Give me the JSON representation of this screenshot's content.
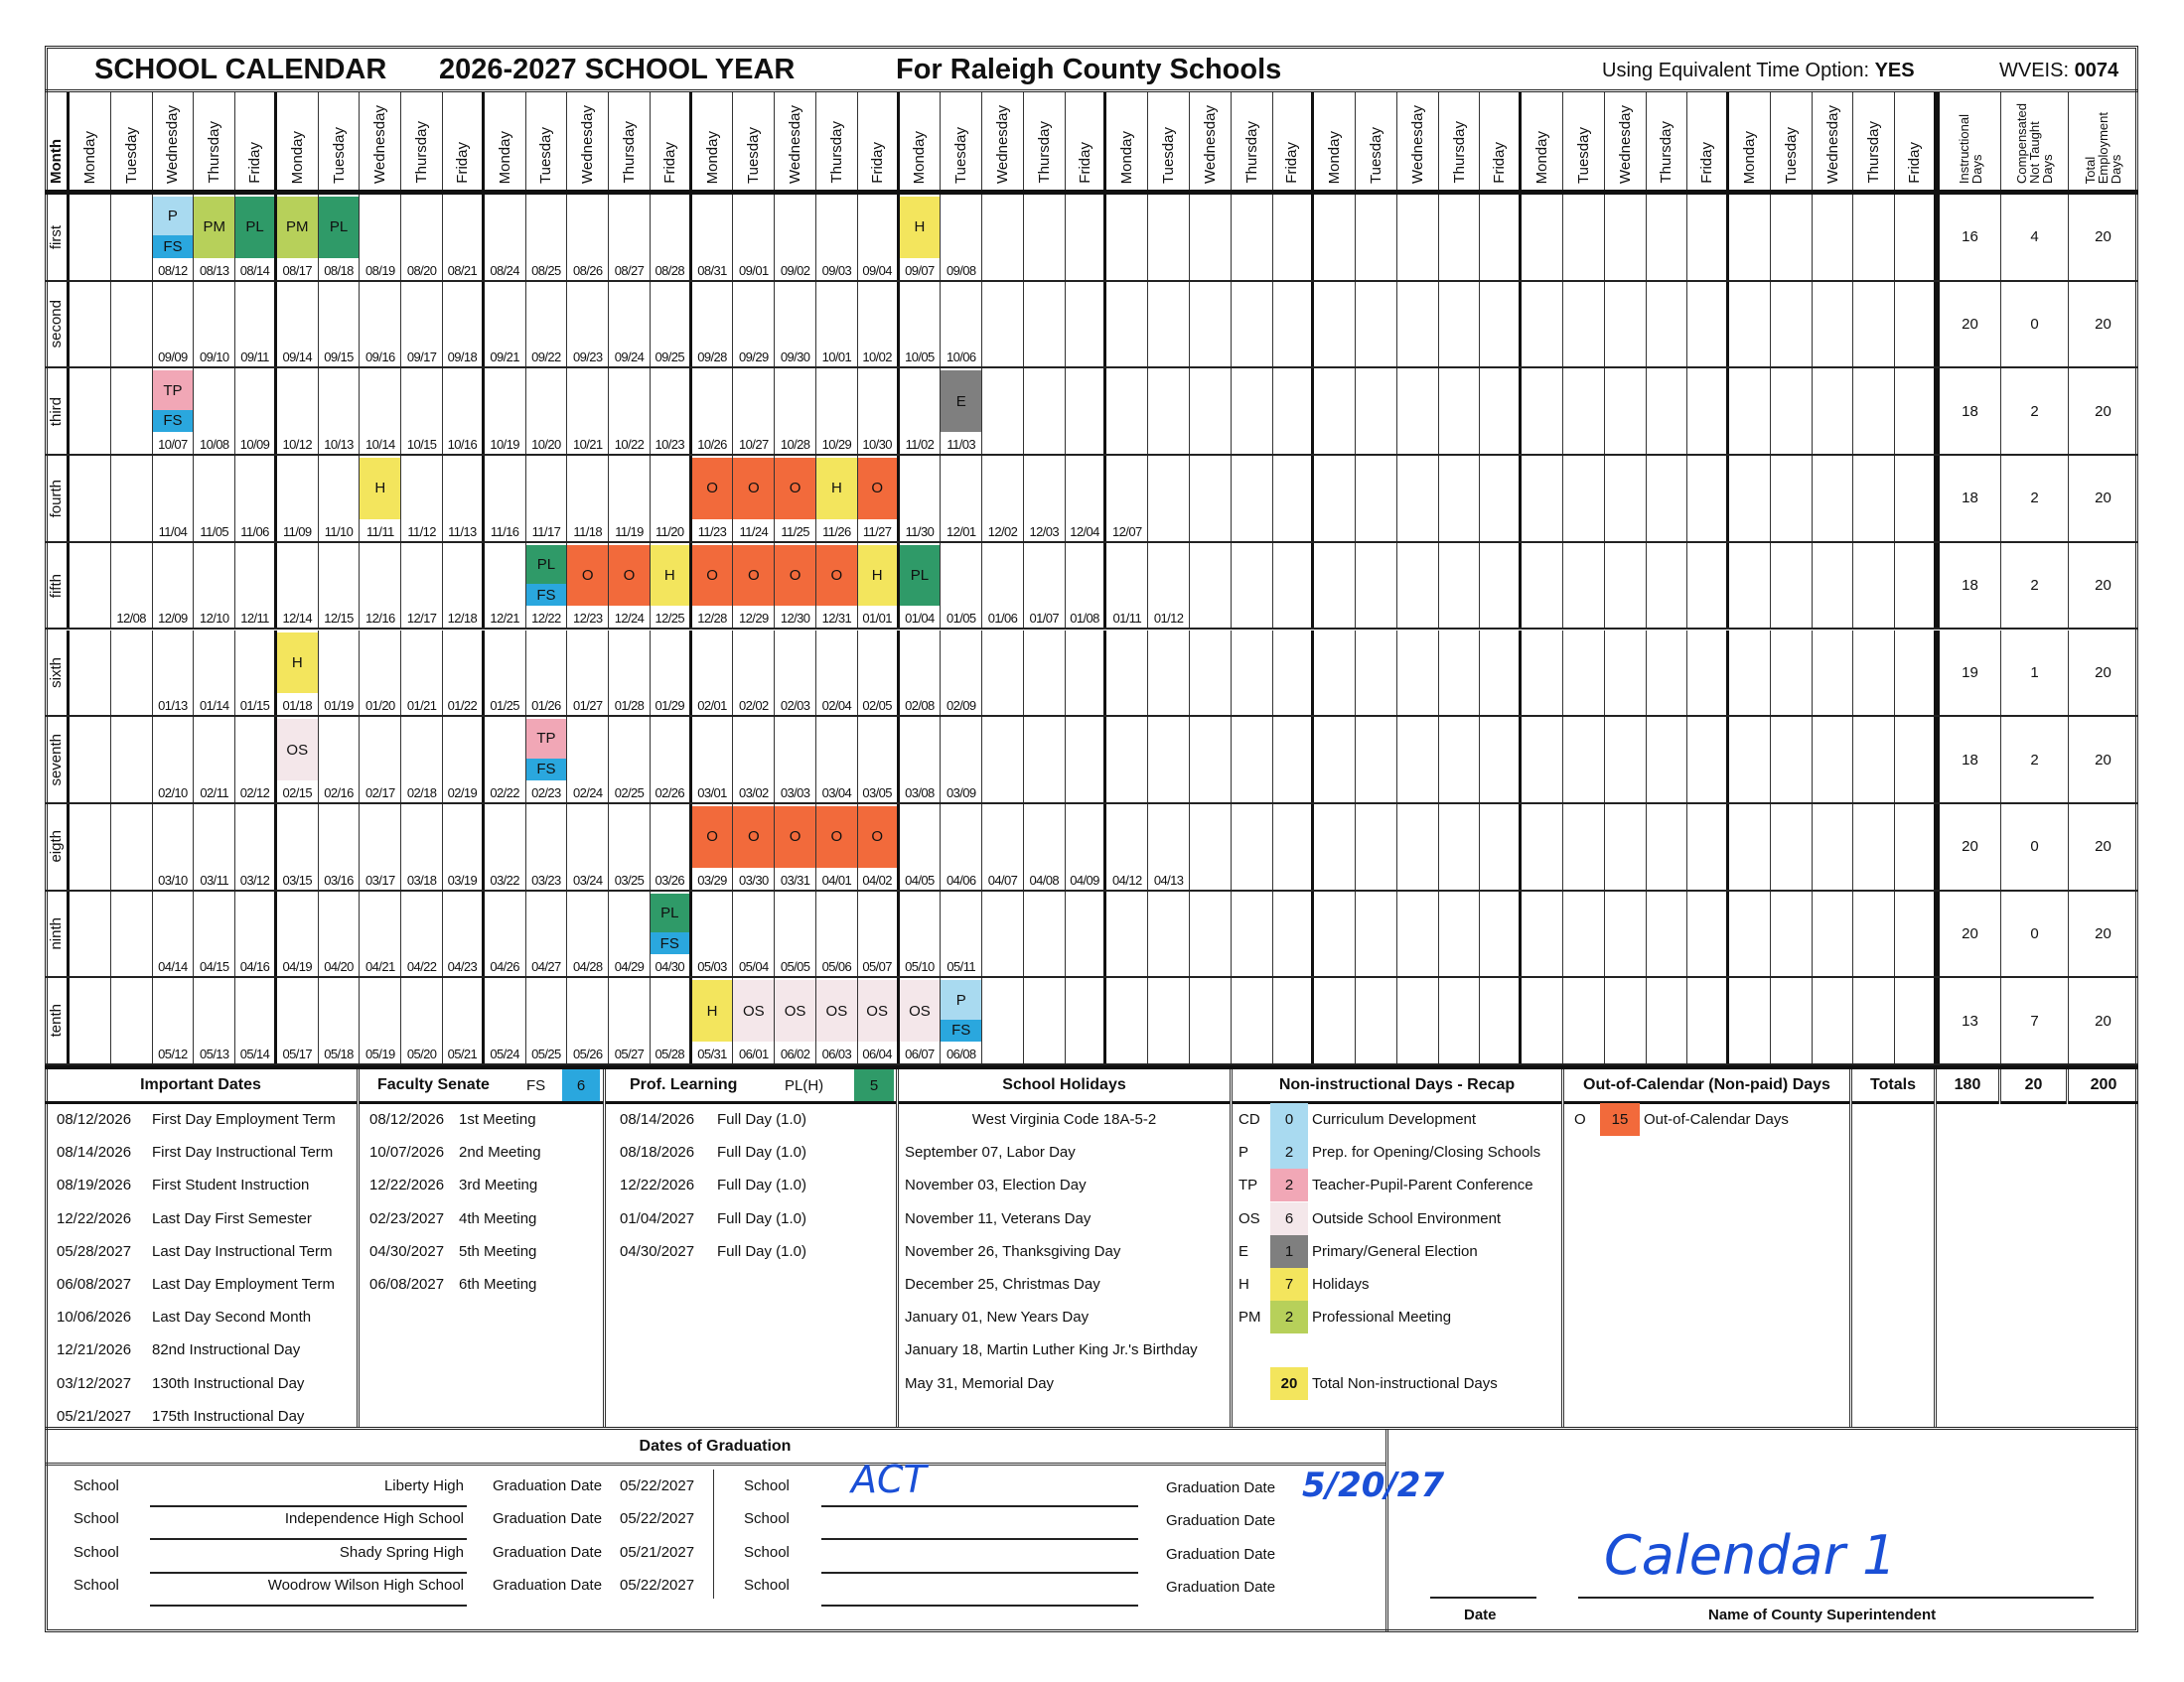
{
  "header": {
    "title": "SCHOOL CALENDAR",
    "school_year": "2026-2027 SCHOOL YEAR",
    "county": "For Raleigh County Schools",
    "equiv_label": "Using Equivalent Time Option:",
    "equiv_value": "YES",
    "wveis_label": "WVEIS:",
    "wveis_value": "0074"
  },
  "calendar": {
    "month_header": "Month",
    "weekdays": [
      "Monday",
      "Tuesday",
      "Wednesday",
      "Thursday",
      "Friday"
    ],
    "weeks": 9,
    "total_headers": [
      "Instructional\nDays",
      "Compensated\nNot Taught\nDays",
      "Total\nEmployment\nDays"
    ],
    "code_colors": {
      "P": "#a9daf0",
      "FS": "#2aa7de",
      "PM": "#b7d05a",
      "PL": "#2f9a68",
      "H": "#f3e55d",
      "O": "#f26a3b",
      "TP": "#f1a7b6",
      "OS": "#f4e7ea",
      "E": "#7f7f7f",
      "CD": "#a9daf0",
      "total": "#f3e55d"
    },
    "months": [
      {
        "label": "first",
        "dates": [
          "",
          "",
          "08/12",
          "08/13",
          "08/14",
          "08/17",
          "08/18",
          "08/19",
          "08/20",
          "08/21",
          "08/24",
          "08/25",
          "08/26",
          "08/27",
          "08/28",
          "08/31",
          "09/01",
          "09/02",
          "09/03",
          "09/04",
          "09/07",
          "09/08"
        ],
        "codes": {
          "08/12": [
            "P",
            "FS"
          ],
          "08/13": [
            "PM"
          ],
          "08/14": [
            "PL"
          ],
          "08/17": [
            "PM"
          ],
          "08/18": [
            "PL"
          ],
          "09/07": [
            "H"
          ]
        },
        "totals": [
          "16",
          "4",
          "20"
        ]
      },
      {
        "label": "second",
        "dates": [
          "",
          "",
          "09/09",
          "09/10",
          "09/11",
          "09/14",
          "09/15",
          "09/16",
          "09/17",
          "09/18",
          "09/21",
          "09/22",
          "09/23",
          "09/24",
          "09/25",
          "09/28",
          "09/29",
          "09/30",
          "10/01",
          "10/02",
          "10/05",
          "10/06"
        ],
        "codes": {},
        "totals": [
          "20",
          "0",
          "20"
        ]
      },
      {
        "label": "third",
        "dates": [
          "",
          "",
          "10/07",
          "10/08",
          "10/09",
          "10/12",
          "10/13",
          "10/14",
          "10/15",
          "10/16",
          "10/19",
          "10/20",
          "10/21",
          "10/22",
          "10/23",
          "10/26",
          "10/27",
          "10/28",
          "10/29",
          "10/30",
          "11/02",
          "11/03"
        ],
        "codes": {
          "10/07": [
            "TP",
            "FS"
          ],
          "11/03": [
            "E"
          ]
        },
        "totals": [
          "18",
          "2",
          "20"
        ]
      },
      {
        "label": "fourth",
        "dates": [
          "",
          "",
          "11/04",
          "11/05",
          "11/06",
          "11/09",
          "11/10",
          "11/11",
          "11/12",
          "11/13",
          "11/16",
          "11/17",
          "11/18",
          "11/19",
          "11/20",
          "11/23",
          "11/24",
          "11/25",
          "11/26",
          "11/27",
          "11/30",
          "12/01",
          "12/02",
          "12/03",
          "12/04",
          "12/07"
        ],
        "codes": {
          "11/11": [
            "H"
          ],
          "11/23": [
            "O"
          ],
          "11/24": [
            "O"
          ],
          "11/25": [
            "O"
          ],
          "11/26": [
            "H"
          ],
          "11/27": [
            "O"
          ]
        },
        "totals": [
          "18",
          "2",
          "20"
        ]
      },
      {
        "label": "fifth",
        "dates": [
          "",
          "12/08",
          "12/09",
          "12/10",
          "12/11",
          "12/14",
          "12/15",
          "12/16",
          "12/17",
          "12/18",
          "12/21",
          "12/22",
          "12/23",
          "12/24",
          "12/25",
          "12/28",
          "12/29",
          "12/30",
          "12/31",
          "01/01",
          "01/04",
          "01/05",
          "01/06",
          "01/07",
          "01/08",
          "01/11",
          "01/12"
        ],
        "codes": {
          "12/22": [
            "PL",
            "FS"
          ],
          "12/23": [
            "O"
          ],
          "12/24": [
            "O"
          ],
          "12/25": [
            "H"
          ],
          "12/28": [
            "O"
          ],
          "12/29": [
            "O"
          ],
          "12/30": [
            "O"
          ],
          "12/31": [
            "O"
          ],
          "01/01": [
            "H"
          ],
          "01/04": [
            "PL"
          ]
        },
        "totals": [
          "18",
          "2",
          "20"
        ]
      },
      {
        "label": "sixth",
        "dates": [
          "",
          "",
          "01/13",
          "01/14",
          "01/15",
          "01/18",
          "01/19",
          "01/20",
          "01/21",
          "01/22",
          "01/25",
          "01/26",
          "01/27",
          "01/28",
          "01/29",
          "02/01",
          "02/02",
          "02/03",
          "02/04",
          "02/05",
          "02/08",
          "02/09"
        ],
        "codes": {
          "01/18": [
            "H"
          ]
        },
        "totals": [
          "19",
          "1",
          "20"
        ]
      },
      {
        "label": "seventh",
        "dates": [
          "",
          "",
          "02/10",
          "02/11",
          "02/12",
          "02/15",
          "02/16",
          "02/17",
          "02/18",
          "02/19",
          "02/22",
          "02/23",
          "02/24",
          "02/25",
          "02/26",
          "03/01",
          "03/02",
          "03/03",
          "03/04",
          "03/05",
          "03/08",
          "03/09"
        ],
        "codes": {
          "02/15": [
            "OS"
          ],
          "02/23": [
            "TP",
            "FS"
          ]
        },
        "totals": [
          "18",
          "2",
          "20"
        ]
      },
      {
        "label": "eigth",
        "dates": [
          "",
          "",
          "03/10",
          "03/11",
          "03/12",
          "03/15",
          "03/16",
          "03/17",
          "03/18",
          "03/19",
          "03/22",
          "03/23",
          "03/24",
          "03/25",
          "03/26",
          "03/29",
          "03/30",
          "03/31",
          "04/01",
          "04/02",
          "04/05",
          "04/06",
          "04/07",
          "04/08",
          "04/09",
          "04/12",
          "04/13"
        ],
        "codes": {
          "03/29": [
            "O"
          ],
          "03/30": [
            "O"
          ],
          "03/31": [
            "O"
          ],
          "04/01": [
            "O"
          ],
          "04/02": [
            "O"
          ]
        },
        "totals": [
          "20",
          "0",
          "20"
        ]
      },
      {
        "label": "ninth",
        "dates": [
          "",
          "",
          "04/14",
          "04/15",
          "04/16",
          "04/19",
          "04/20",
          "04/21",
          "04/22",
          "04/23",
          "04/26",
          "04/27",
          "04/28",
          "04/29",
          "04/30",
          "05/03",
          "05/04",
          "05/05",
          "05/06",
          "05/07",
          "05/10",
          "05/11"
        ],
        "codes": {
          "04/30": [
            "PL",
            "FS"
          ]
        },
        "totals": [
          "20",
          "0",
          "20"
        ]
      },
      {
        "label": "tenth",
        "dates": [
          "",
          "",
          "05/12",
          "05/13",
          "05/14",
          "05/17",
          "05/18",
          "05/19",
          "05/20",
          "05/21",
          "05/24",
          "05/25",
          "05/26",
          "05/27",
          "05/28",
          "05/31",
          "06/01",
          "06/02",
          "06/03",
          "06/04",
          "06/07",
          "06/08"
        ],
        "codes": {
          "05/31": [
            "H"
          ],
          "06/01": [
            "OS"
          ],
          "06/02": [
            "OS"
          ],
          "06/03": [
            "OS"
          ],
          "06/04": [
            "OS"
          ],
          "06/07": [
            "OS"
          ],
          "06/08": [
            "P",
            "FS"
          ]
        },
        "totals": [
          "13",
          "7",
          "20"
        ]
      }
    ]
  },
  "important_dates": {
    "title": "Important Dates",
    "items": [
      {
        "date": "08/12/2026",
        "text": "First Day Employment Term"
      },
      {
        "date": "08/14/2026",
        "text": "First Day Instructional Term"
      },
      {
        "date": "08/19/2026",
        "text": "First Student Instruction"
      },
      {
        "date": "12/22/2026",
        "text": "Last Day First Semester"
      },
      {
        "date": "05/28/2027",
        "text": "Last Day Instructional Term"
      },
      {
        "date": "06/08/2027",
        "text": "Last Day Employment Term"
      },
      {
        "date": "10/06/2026",
        "text": "Last Day Second Month"
      },
      {
        "date": "12/21/2026",
        "text": "82nd Instructional Day"
      },
      {
        "date": "03/12/2027",
        "text": "130th Instructional Day"
      },
      {
        "date": "05/21/2027",
        "text": "175th Instructional Day"
      }
    ]
  },
  "faculty_senate": {
    "title": "Faculty Senate",
    "code": "FS",
    "count": "6",
    "items": [
      {
        "date": "08/12/2026",
        "text": "1st Meeting"
      },
      {
        "date": "10/07/2026",
        "text": "2nd Meeting"
      },
      {
        "date": "12/22/2026",
        "text": "3rd Meeting"
      },
      {
        "date": "02/23/2027",
        "text": "4th Meeting"
      },
      {
        "date": "04/30/2027",
        "text": "5th Meeting"
      },
      {
        "date": "06/08/2027",
        "text": "6th Meeting"
      }
    ]
  },
  "prof_learning": {
    "title": "Prof. Learning",
    "code": "PL(H)",
    "count": "5",
    "items": [
      {
        "date": "08/14/2026",
        "text": "Full Day (1.0)"
      },
      {
        "date": "08/18/2026",
        "text": "Full Day (1.0)"
      },
      {
        "date": "12/22/2026",
        "text": "Full Day (1.0)"
      },
      {
        "date": "01/04/2027",
        "text": "Full Day (1.0)"
      },
      {
        "date": "04/30/2027",
        "text": "Full Day (1.0)"
      }
    ]
  },
  "holidays": {
    "title": "School Holidays",
    "code_ref": "West Virginia Code 18A-5-2",
    "items": [
      "September 07, Labor Day",
      "November 03, Election Day",
      "November 11, Veterans Day",
      "November 26, Thanksgiving Day",
      "December 25, Christmas Day",
      "January 01, New Years Day",
      "January 18, Martin Luther King Jr.'s Birthday",
      "May 31, Memorial Day"
    ]
  },
  "recap": {
    "title": "Non-instructional Days - Recap",
    "items": [
      {
        "code": "CD",
        "count": "0",
        "label": "Curriculum Development"
      },
      {
        "code": "P",
        "count": "2",
        "label": "Prep. for Opening/Closing Schools"
      },
      {
        "code": "TP",
        "count": "2",
        "label": "Teacher-Pupil-Parent Conference"
      },
      {
        "code": "OS",
        "count": "6",
        "label": "Outside School Environment"
      },
      {
        "code": "E",
        "count": "1",
        "label": "Primary/General Election"
      },
      {
        "code": "H",
        "count": "7",
        "label": "Holidays"
      },
      {
        "code": "PM",
        "count": "2",
        "label": "Professional Meeting"
      }
    ],
    "total_count": "20",
    "total_label": "Total Non-instructional Days"
  },
  "out_of_calendar": {
    "title": "Out-of-Calendar (Non-paid) Days",
    "code": "O",
    "count": "15",
    "label": "Out-of-Calendar Days"
  },
  "totals": {
    "label": "Totals",
    "instructional": "180",
    "compensated": "20",
    "employment": "200"
  },
  "graduation": {
    "title": "Dates of Graduation",
    "school_label": "School",
    "date_label": "Graduation Date",
    "left": [
      {
        "school": "Liberty High",
        "date": "05/22/2027"
      },
      {
        "school": "Independence High School",
        "date": "05/22/2027"
      },
      {
        "school": "Shady Spring High",
        "date": "05/21/2027"
      },
      {
        "school": "Woodrow Wilson High School",
        "date": "05/22/2027"
      }
    ],
    "right": [
      {
        "school": "ACT",
        "date": "5/20/27"
      },
      {
        "school": "",
        "date": ""
      },
      {
        "school": "",
        "date": ""
      },
      {
        "school": "",
        "date": ""
      }
    ]
  },
  "signature": {
    "date_label": "Date",
    "name_label": "Name of County Superintendent",
    "handwritten_name": "Calendar 1"
  }
}
